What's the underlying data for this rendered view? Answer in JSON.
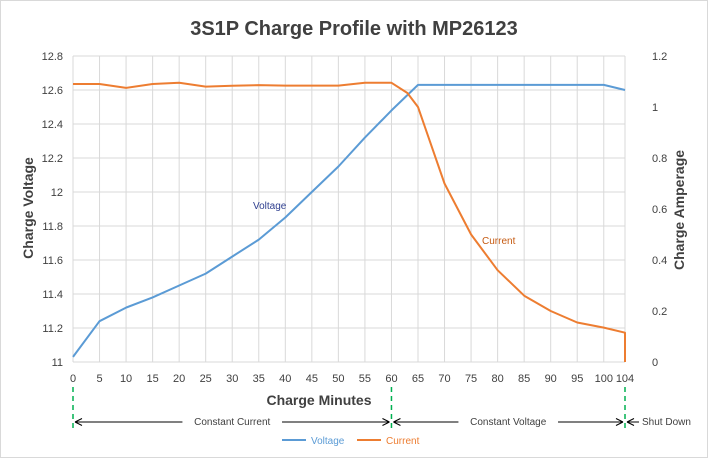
{
  "chart_data": {
    "type": "line",
    "title": "3S1P Charge Profile with MP26123",
    "xlabel": "Charge Minutes",
    "ylabel": "Charge Voltage",
    "y2label": "Charge Amperage",
    "x_ticks": [
      "0",
      "5",
      "10",
      "15",
      "20",
      "25",
      "30",
      "35",
      "40",
      "45",
      "50",
      "55",
      "60",
      "65",
      "70",
      "75",
      "80",
      "85",
      "90",
      "95",
      "100",
      "104"
    ],
    "ylim": [
      11,
      12.8
    ],
    "y_ticks": [
      "11",
      "11.2",
      "11.4",
      "11.6",
      "11.8",
      "12",
      "12.2",
      "12.4",
      "12.6",
      "12.8"
    ],
    "y2lim": [
      0,
      1.2
    ],
    "y2_ticks": [
      "0",
      "0.2",
      "0.4",
      "0.6",
      "0.8",
      "1",
      "1.2"
    ],
    "grid": true,
    "legend_position": "bottom",
    "series": [
      {
        "name": "Voltage",
        "color": "#5b9bd5",
        "axis": "left",
        "x": [
          0,
          5,
          10,
          15,
          20,
          25,
          30,
          35,
          40,
          45,
          50,
          55,
          60,
          65,
          70,
          75,
          80,
          85,
          90,
          95,
          100,
          104
        ],
        "values": [
          11.03,
          11.24,
          11.32,
          11.38,
          11.45,
          11.52,
          11.62,
          11.72,
          11.85,
          12.0,
          12.15,
          12.32,
          12.48,
          12.63,
          12.63,
          12.63,
          12.63,
          12.63,
          12.63,
          12.63,
          12.63,
          12.6
        ]
      },
      {
        "name": "Current",
        "color": "#ed7d31",
        "axis": "right",
        "x": [
          0,
          5,
          10,
          15,
          20,
          25,
          30,
          35,
          40,
          45,
          50,
          55,
          60,
          63,
          65,
          70,
          75,
          80,
          85,
          90,
          95,
          100,
          104,
          104
        ],
        "values": [
          1.09,
          1.09,
          1.075,
          1.09,
          1.095,
          1.08,
          1.083,
          1.086,
          1.084,
          1.084,
          1.084,
          1.095,
          1.095,
          1.055,
          1.0,
          0.7,
          0.5,
          0.36,
          0.26,
          0.2,
          0.155,
          0.135,
          0.115,
          0.0
        ]
      }
    ],
    "annotations": {
      "voltage_label": "Voltage",
      "current_label": "Current"
    },
    "phases": [
      {
        "label": "Constant Current",
        "start": 0,
        "end": 60
      },
      {
        "label": "Constant Voltage",
        "start": 60,
        "end": 104
      },
      {
        "label": "Shut Down",
        "start": 104,
        "end": null
      }
    ]
  }
}
